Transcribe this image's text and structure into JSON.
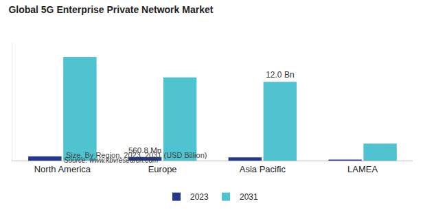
{
  "chart_data": {
    "type": "bar",
    "title": "Global 5G Enterprise Private Network Market",
    "subtitle": "Size, By Region, 2023, 2031 (USD Billion)",
    "categories": [
      "North America",
      "Europe",
      "Asia Pacific",
      "LAMEA"
    ],
    "series": [
      {
        "name": "2023",
        "color": "#24388f",
        "values": [
          0.65,
          0.5608,
          0.5,
          0.15
        ],
        "value_labels": [
          null,
          "560.8 Mn",
          null,
          null
        ]
      },
      {
        "name": "2031",
        "color": "#4fc3cf",
        "values": [
          15.8,
          12.7,
          12.0,
          2.6
        ],
        "value_labels": [
          null,
          null,
          "12.0 Bn",
          null
        ]
      }
    ],
    "ylim": [
      0,
      18
    ],
    "tick_labels": "x",
    "grid": false,
    "legend": "bottom",
    "annotations": [
      "Source: www.kbvresearch.com"
    ]
  }
}
